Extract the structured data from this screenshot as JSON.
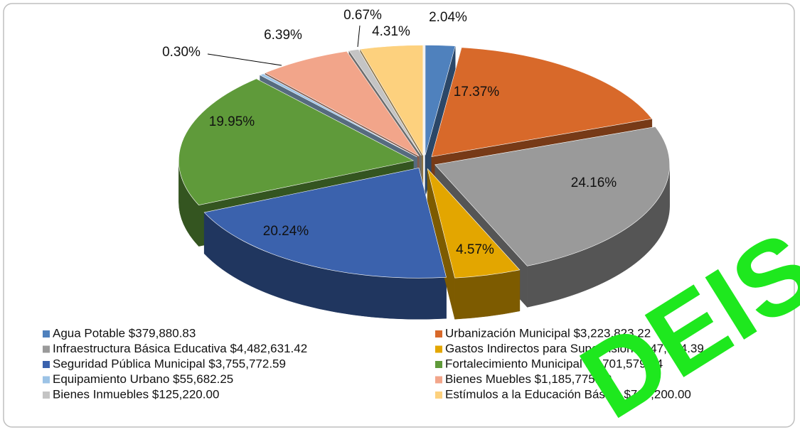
{
  "chart_data": {
    "type": "pie3d",
    "categories": [
      "Agua Potable $379,880.83",
      "Urbanización Municipal $3,223,823.22",
      "Infraestructura Básica Educativa $4,482,631.42",
      "Gastos Indirectos para Supervisión $847,184.39",
      "Seguridad Pública Municipal $3,755,772.59",
      "Fortalecimiento Municipal $3,701,579.34",
      "Equipamiento Urbano $55,682.25",
      "Bienes Muebles $1,185,775.19",
      "Bienes Inmuebles $125,220.00",
      "Estímulos a la Educación Básica $799,200.00"
    ],
    "values": [
      2.04,
      17.37,
      24.16,
      4.57,
      20.24,
      19.95,
      0.3,
      6.39,
      0.67,
      4.31
    ],
    "value_labels": [
      "2.04%",
      "17.37%",
      "24.16%",
      "4.57%",
      "20.24%",
      "19.95%",
      "0.30%",
      "6.39%",
      "0.67%",
      "4.31%"
    ],
    "colors": [
      "#4f81bd",
      "#d8692a",
      "#9a9a9a",
      "#e3a600",
      "#3b62ad",
      "#5f9a3a",
      "#9cc3e6",
      "#f2a58a",
      "#c4c4c4",
      "#fdd17e"
    ],
    "annotation": "DEIS"
  }
}
